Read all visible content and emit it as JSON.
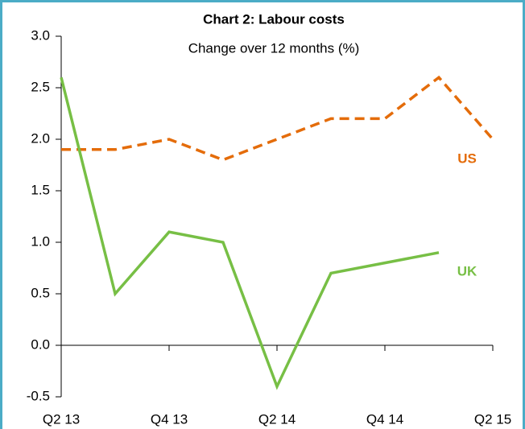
{
  "chart_data": {
    "type": "line",
    "title": "Chart 2: Labour costs",
    "subtitle": "Change over 12 months (%)",
    "categories": [
      "Q2 13",
      null,
      "Q4 13",
      null,
      "Q2 14",
      null,
      "Q4 14",
      null,
      "Q2 15"
    ],
    "series": [
      {
        "name": "US",
        "color": "#e46c0a",
        "line_style": "dashed",
        "values": [
          1.9,
          1.9,
          2.0,
          1.8,
          2.0,
          2.2,
          2.2,
          2.6,
          2.0
        ]
      },
      {
        "name": "UK",
        "color": "#77bf45",
        "line_style": "solid",
        "values": [
          2.6,
          0.5,
          1.1,
          1.0,
          -0.4,
          0.7,
          0.8,
          0.9,
          null
        ]
      }
    ],
    "ylim": [
      -0.5,
      3.0
    ],
    "yticks": [
      -0.5,
      {
        "value": 0,
        "label": "0.0"
      },
      0.5,
      {
        "value": 1,
        "label": "1.0"
      },
      1.5,
      {
        "value": 2,
        "label": "2.0"
      },
      2.5,
      {
        "value": 3,
        "label": "3.0"
      }
    ],
    "grid": false
  }
}
